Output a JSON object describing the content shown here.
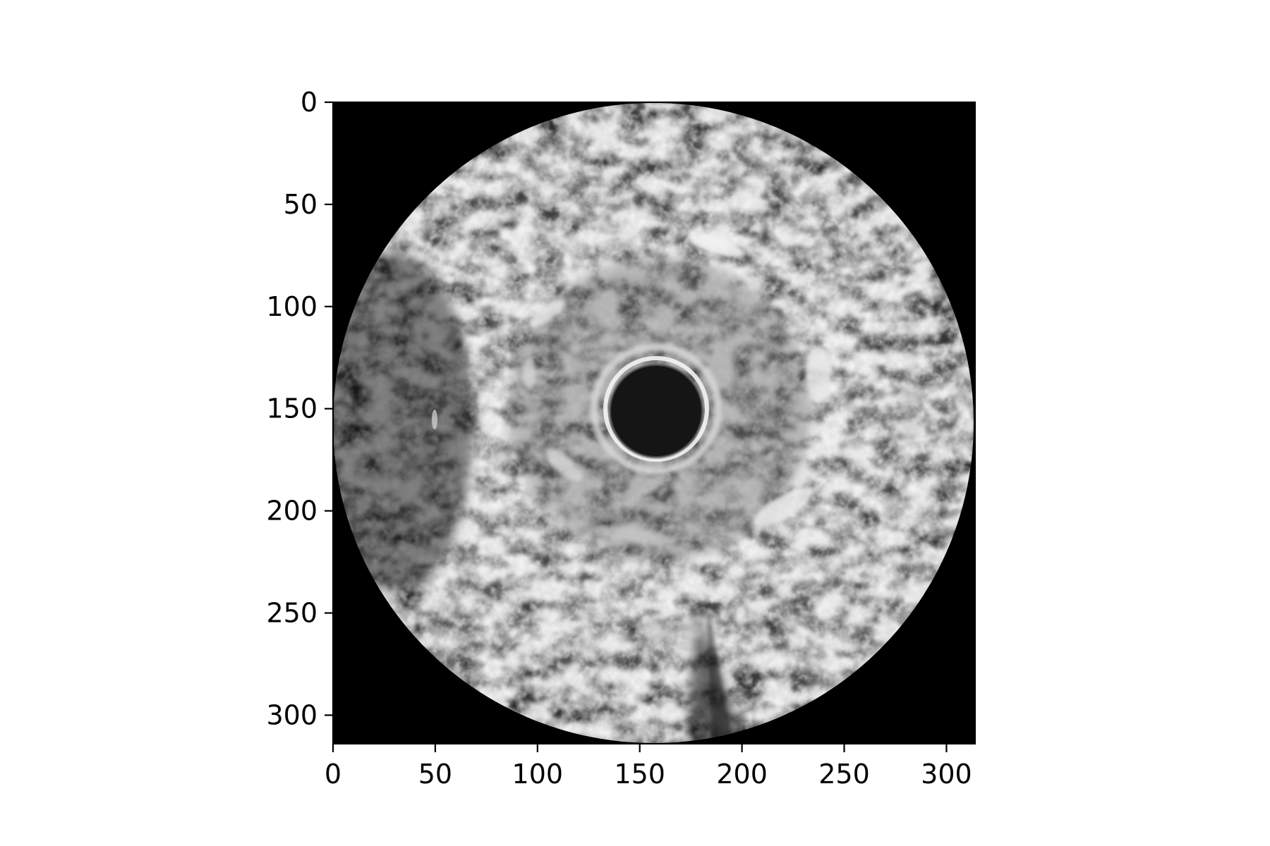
{
  "image": {
    "description_type": "grayscale intravascular ultrasound cross-section",
    "background_color": "#000000"
  },
  "axes": {
    "x": {
      "range": [
        0,
        314
      ],
      "ticks": [
        0,
        50,
        100,
        150,
        200,
        250,
        300
      ],
      "tick_labels": [
        "0",
        "50",
        "100",
        "150",
        "200",
        "250",
        "300"
      ]
    },
    "y": {
      "range": [
        0,
        314
      ],
      "inverted": true,
      "ticks": [
        0,
        50,
        100,
        150,
        200,
        250,
        300
      ],
      "tick_labels": [
        "0",
        "50",
        "100",
        "150",
        "200",
        "250",
        "300"
      ]
    }
  }
}
